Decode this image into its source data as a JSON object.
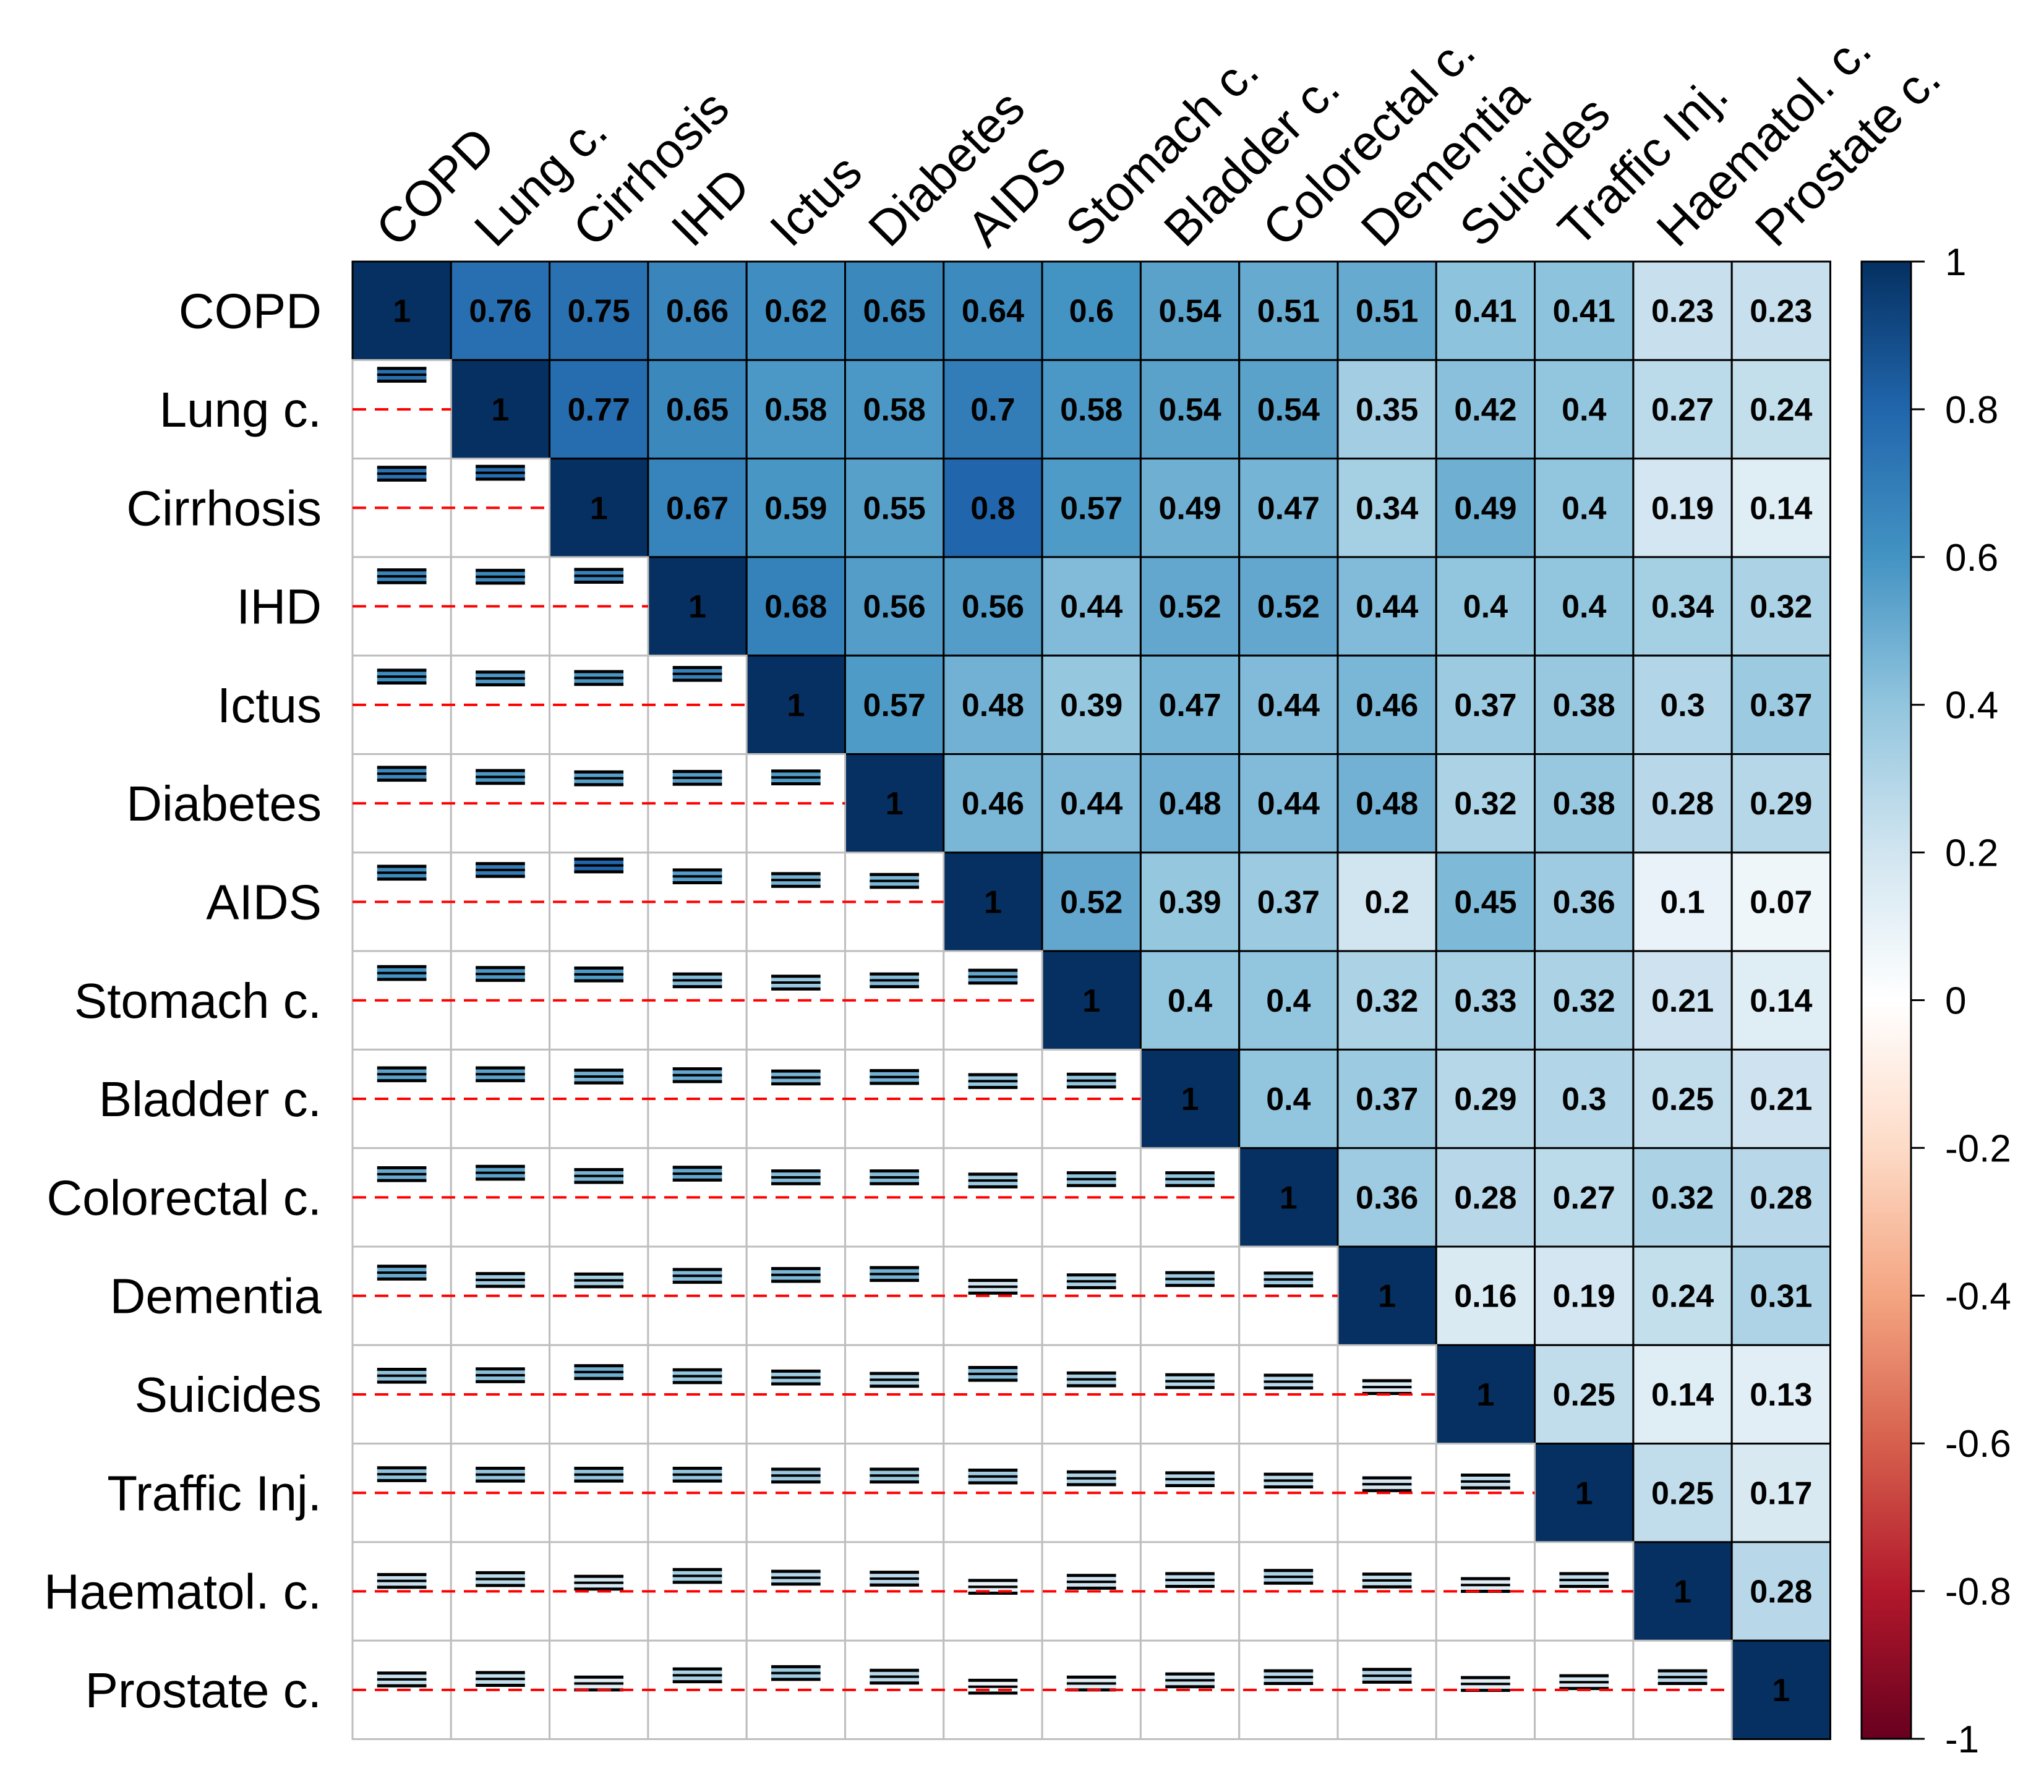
{
  "chart_data": {
    "type": "heatmap",
    "title": "",
    "variables": [
      "COPD",
      "Lung c.",
      "Cirrhosis",
      "IHD",
      "Ictus",
      "Diabetes",
      "AIDS",
      "Stomach c.",
      "Bladder c.",
      "Colorectal c.",
      "Dementia",
      "Suicides",
      "Traffic Inj.",
      "Haematol. c.",
      "Prostate c."
    ],
    "upper_triangle_values": [
      [
        "1",
        "0.76",
        "0.75",
        "0.66",
        "0.62",
        "0.65",
        "0.64",
        "0.6",
        "0.54",
        "0.51",
        "0.51",
        "0.41",
        "0.41",
        "0.23",
        "0.23"
      ],
      [
        "",
        "1",
        "0.77",
        "0.65",
        "0.58",
        "0.58",
        "0.7",
        "0.58",
        "0.54",
        "0.54",
        "0.35",
        "0.42",
        "0.4",
        "0.27",
        "0.24"
      ],
      [
        "",
        "",
        "1",
        "0.67",
        "0.59",
        "0.55",
        "0.8",
        "0.57",
        "0.49",
        "0.47",
        "0.34",
        "0.49",
        "0.4",
        "0.19",
        "0.14"
      ],
      [
        "",
        "",
        "",
        "1",
        "0.68",
        "0.56",
        "0.56",
        "0.44",
        "0.52",
        "0.52",
        "0.44",
        "0.4",
        "0.4",
        "0.34",
        "0.32"
      ],
      [
        "",
        "",
        "",
        "",
        "1",
        "0.57",
        "0.48",
        "0.39",
        "0.47",
        "0.44",
        "0.46",
        "0.37",
        "0.38",
        "0.3",
        "0.37"
      ],
      [
        "",
        "",
        "",
        "",
        "",
        "1",
        "0.46",
        "0.44",
        "0.48",
        "0.44",
        "0.48",
        "0.32",
        "0.38",
        "0.28",
        "0.29"
      ],
      [
        "",
        "",
        "",
        "",
        "",
        "",
        "1",
        "0.52",
        "0.39",
        "0.37",
        "0.2",
        "0.45",
        "0.36",
        "0.1",
        "0.07"
      ],
      [
        "",
        "",
        "",
        "",
        "",
        "",
        "",
        "1",
        "0.4",
        "0.4",
        "0.32",
        "0.33",
        "0.32",
        "0.21",
        "0.14"
      ],
      [
        "",
        "",
        "",
        "",
        "",
        "",
        "",
        "",
        "1",
        "0.4",
        "0.37",
        "0.29",
        "0.3",
        "0.25",
        "0.21"
      ],
      [
        "",
        "",
        "",
        "",
        "",
        "",
        "",
        "",
        "",
        "1",
        "0.36",
        "0.28",
        "0.27",
        "0.32",
        "0.28"
      ],
      [
        "",
        "",
        "",
        "",
        "",
        "",
        "",
        "",
        "",
        "",
        "1",
        "0.16",
        "0.19",
        "0.24",
        "0.31"
      ],
      [
        "",
        "",
        "",
        "",
        "",
        "",
        "",
        "",
        "",
        "",
        "",
        "1",
        "0.25",
        "0.14",
        "0.13"
      ],
      [
        "",
        "",
        "",
        "",
        "",
        "",
        "",
        "",
        "",
        "",
        "",
        "",
        "1",
        "0.25",
        "0.17"
      ],
      [
        "",
        "",
        "",
        "",
        "",
        "",
        "",
        "",
        "",
        "",
        "",
        "",
        "",
        "1",
        "0.28"
      ],
      [
        "",
        "",
        "",
        "",
        "",
        "",
        "",
        "",
        "",
        "",
        "",
        "",
        "",
        "",
        "1"
      ]
    ],
    "lower_triangle": "confidence-interval glyphs: fill = correlation colour, black lines = CI bounds, red dashed line = zero reference",
    "colorbar": {
      "range": [
        -1,
        1
      ],
      "ticks": [
        "1",
        "0.8",
        "0.6",
        "0.4",
        "0.2",
        "0",
        "-0.2",
        "-0.4",
        "-0.6",
        "-0.8",
        "-1"
      ],
      "colors": [
        "#67001F",
        "#B2182B",
        "#D6604D",
        "#F4A582",
        "#FDDBC7",
        "#FFFFFF",
        "#D1E5F0",
        "#92C5DE",
        "#4393C3",
        "#2166AC",
        "#053061"
      ]
    }
  },
  "colors": {
    "grid": "#BEBEBE",
    "border": "#000000",
    "zero_line": "#FF0000",
    "ci_line": "#000000"
  }
}
